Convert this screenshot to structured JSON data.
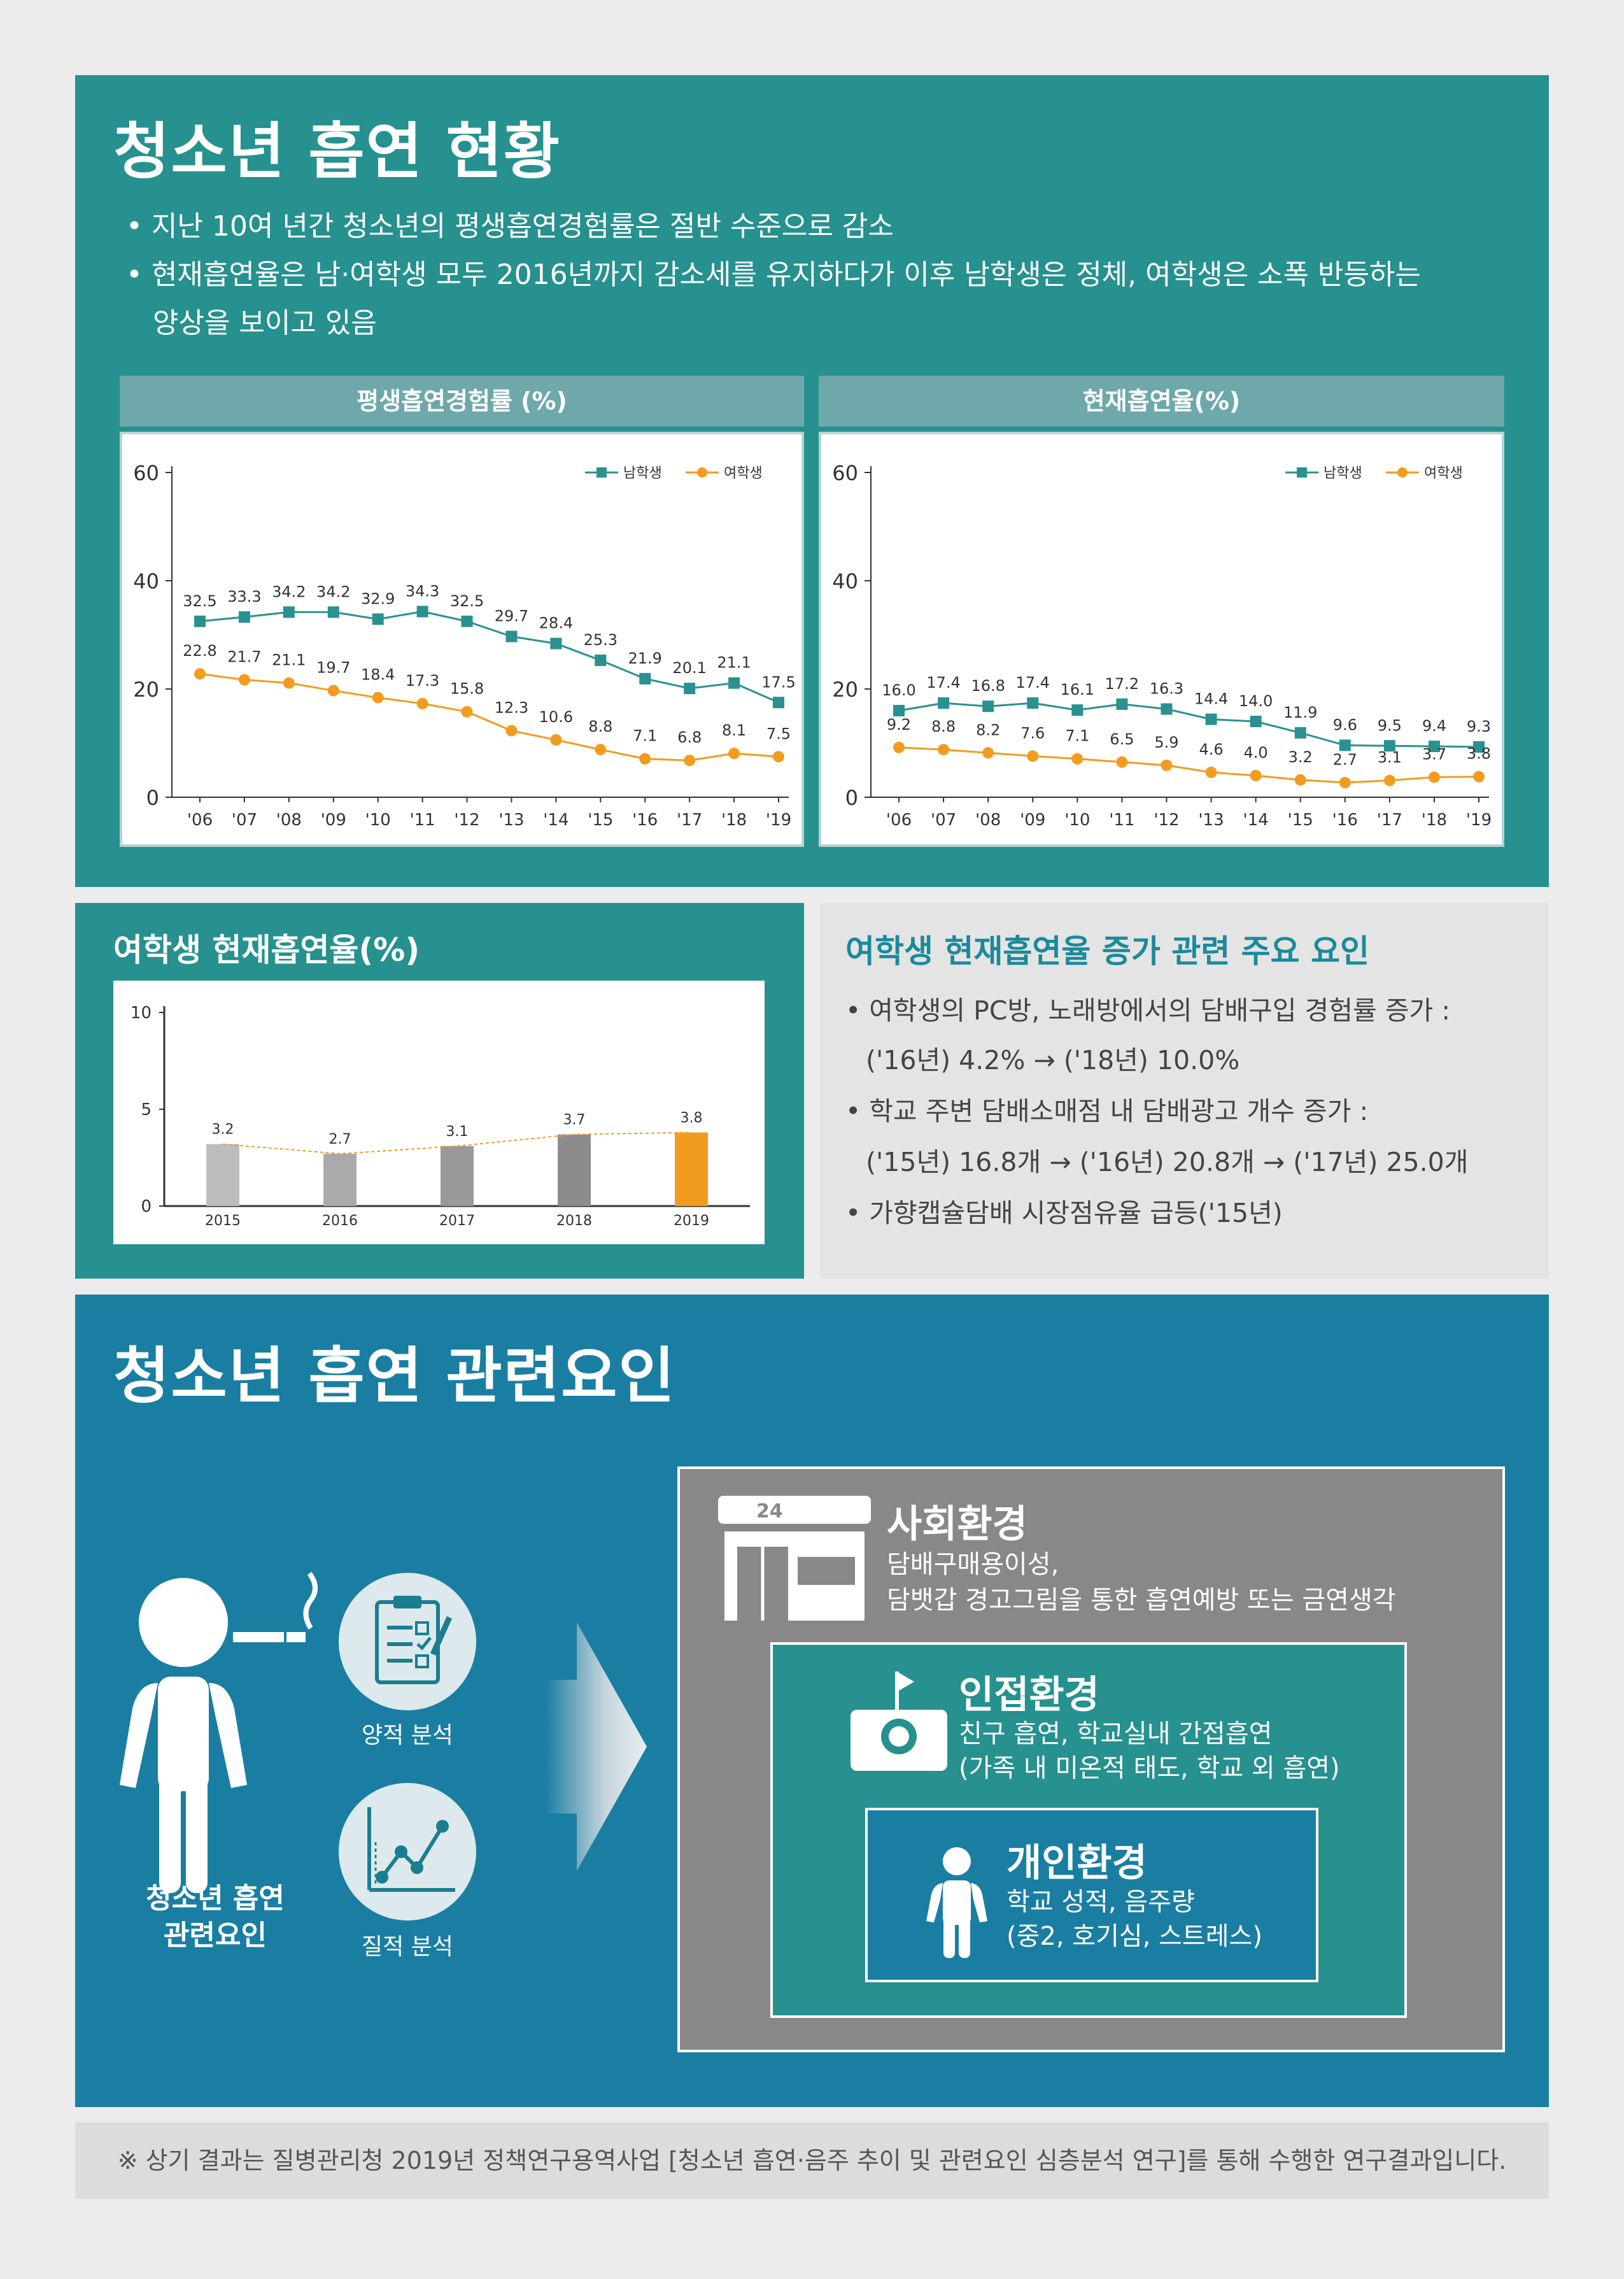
{
  "section1": {
    "title": "청소년 흡연 현황",
    "bullets": [
      "• 지난 10여 년간 청소년의 평생흡연경험률은 절반 수준으로 감소",
      "• 현재흡연율은 남·여학생 모두 2016년까지 감소세를 유지하다가 이후 남학생은 정체, 여학생은 소폭 반등하는",
      "양상을 보이고 있음"
    ],
    "chart1_title": "평생흡연경험률 (%)",
    "chart2_title": "현재흡연율(%)"
  },
  "chart_data": [
    {
      "type": "line",
      "title": "평생흡연경험률 (%)",
      "categories": [
        "'06",
        "'07",
        "'08",
        "'09",
        "'10",
        "'11",
        "'12",
        "'13",
        "'14",
        "'15",
        "'16",
        "'17",
        "'18",
        "'19"
      ],
      "series": [
        {
          "name": "남학생",
          "values": [
            32.5,
            33.3,
            34.2,
            34.2,
            32.9,
            34.3,
            32.5,
            29.7,
            28.4,
            25.3,
            21.9,
            20.1,
            21.1,
            17.5
          ],
          "color": "#2a9190"
        },
        {
          "name": "여학생",
          "values": [
            22.8,
            21.7,
            21.1,
            19.7,
            18.4,
            17.3,
            15.8,
            12.3,
            10.6,
            8.8,
            7.1,
            6.8,
            8.1,
            7.5
          ],
          "color": "#f29c1f"
        }
      ],
      "yticks": [
        0,
        20,
        40,
        60
      ],
      "ylim": [
        0,
        60
      ],
      "legend": "top-right"
    },
    {
      "type": "line",
      "title": "현재흡연율(%)",
      "categories": [
        "'06",
        "'07",
        "'08",
        "'09",
        "'10",
        "'11",
        "'12",
        "'13",
        "'14",
        "'15",
        "'16",
        "'17",
        "'18",
        "'19"
      ],
      "series": [
        {
          "name": "남학생",
          "values": [
            16.0,
            17.4,
            16.8,
            17.4,
            16.1,
            17.2,
            16.3,
            14.4,
            14.0,
            11.9,
            9.6,
            9.5,
            9.4,
            9.3
          ],
          "color": "#2a9190"
        },
        {
          "name": "여학생",
          "values": [
            9.2,
            8.8,
            8.2,
            7.6,
            7.1,
            6.5,
            5.9,
            4.6,
            4.0,
            3.2,
            2.7,
            3.1,
            3.7,
            3.8
          ],
          "color": "#f29c1f"
        }
      ],
      "yticks": [
        0,
        20,
        40,
        60
      ],
      "ylim": [
        0,
        60
      ],
      "legend": "top-right"
    },
    {
      "type": "bar",
      "title": "여학생 현재흡연율(%)",
      "categories": [
        "2015",
        "2016",
        "2017",
        "2018",
        "2019"
      ],
      "values": [
        3.2,
        2.7,
        3.1,
        3.7,
        3.8
      ],
      "colors": [
        "#bdbdbd",
        "#aaaaaa",
        "#999999",
        "#8c8c8c",
        "#f29c1f"
      ],
      "yticks": [
        0,
        5,
        10
      ],
      "ylim": [
        0,
        10
      ]
    }
  ],
  "section2": {
    "left_title": "여학생 현재흡연율(%)",
    "right_title": "여학생 현재흡연율 증가 관련 주요 요인",
    "right_lines": [
      "• 여학생의 PC방, 노래방에서의 담배구입 경험률 증가 :",
      "('16년) 4.2% → ('18년) 10.0%",
      "• 학교 주변 담배소매점 내 담배광고 개수 증가 :",
      "('15년) 16.8개 → ('16년) 20.8개 → ('17년) 25.0개",
      "• 가향캡슐담배 시장점유율 급등('15년)"
    ]
  },
  "section3": {
    "title": "청소년 흡연 관련요인",
    "person_label_1": "청소년 흡연",
    "person_label_2": "관련요인",
    "quant": "양적 분석",
    "qual": "질적 분석",
    "store_sign": "24",
    "social_title": "사회환경",
    "social_body_1": "담배구매용이성,",
    "social_body_2": "담뱃갑 경고그림을 통한 흡연예방 또는 금연생각",
    "adjacent_title": "인접환경",
    "adjacent_body_1": "친구 흡연, 학교실내 간접흡연",
    "adjacent_body_2": "(가족 내 미온적 태도, 학교 외 흡연)",
    "individual_title": "개인환경",
    "individual_body_1": "학교 성적, 음주량",
    "individual_body_2": "(중2, 호기심, 스트레스)"
  },
  "footnote": "※ 상기 결과는 질병관리청 2019년 정책연구용역사업 [청소년 흡연·음주 추이 및 관련요인 심층분석 연구]를 통해 수행한 연구결과입니다."
}
